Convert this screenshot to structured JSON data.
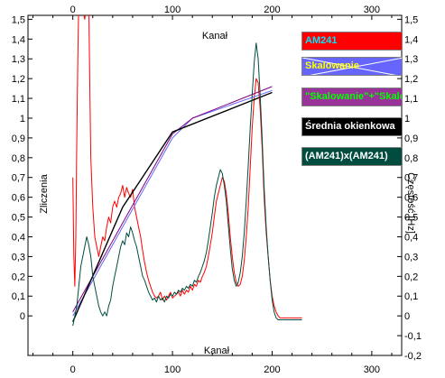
{
  "chart_data": {
    "type": "line",
    "x_top_ticks": [
      "0",
      "100",
      "200",
      "300"
    ],
    "x_bottom_ticks": [
      "0",
      "100",
      "200",
      "300"
    ],
    "x_top_label": "Kanał",
    "x_bottom_label": "Kanał",
    "y_left_label": "Zliczenia",
    "y_right_label": "Częstość [Hz]",
    "y_left_ticks": [
      "1,5",
      "1,4",
      "1,3",
      "1,2",
      "1,1",
      "1",
      "0,9",
      "0,8",
      "0,7",
      "0,6",
      "0,5",
      "0,4",
      "0,3",
      "0,2",
      "0,1",
      "0"
    ],
    "y_right_ticks": [
      "1,5",
      "1,4",
      "1,3",
      "1,2",
      "1,1",
      "1",
      "0,9",
      "0,8",
      "0,7",
      "0,6",
      "0,5",
      "0,4",
      "0,3",
      "0,2",
      "0,1",
      "0",
      "-0,1",
      "-0,2"
    ],
    "xlim": [
      -45,
      330
    ],
    "ylim": [
      -0.2,
      1.52
    ],
    "grid": false,
    "series": [
      {
        "name": "AM241",
        "color": "#ff0000",
        "points": [
          [
            0,
            0.7
          ],
          [
            1,
            0.3
          ],
          [
            2,
            0.15
          ],
          [
            3,
            0.4
          ],
          [
            4,
            0.9
          ],
          [
            5,
            1.3
          ],
          [
            6,
            1.6
          ],
          [
            8,
            1.6
          ],
          [
            10,
            1.55
          ],
          [
            12,
            1.5
          ],
          [
            14,
            1.6
          ],
          [
            16,
            1.6
          ],
          [
            17,
            1.2
          ],
          [
            18,
            0.8
          ],
          [
            20,
            0.55
          ],
          [
            22,
            0.4
          ],
          [
            24,
            0.35
          ],
          [
            26,
            0.3
          ],
          [
            28,
            0.35
          ],
          [
            30,
            0.4
          ],
          [
            32,
            0.38
          ],
          [
            34,
            0.45
          ],
          [
            36,
            0.5
          ],
          [
            38,
            0.47
          ],
          [
            40,
            0.55
          ],
          [
            42,
            0.58
          ],
          [
            44,
            0.55
          ],
          [
            46,
            0.6
          ],
          [
            48,
            0.62
          ],
          [
            50,
            0.66
          ],
          [
            52,
            0.6
          ],
          [
            54,
            0.65
          ],
          [
            56,
            0.62
          ],
          [
            58,
            0.6
          ],
          [
            60,
            0.64
          ],
          [
            62,
            0.55
          ],
          [
            64,
            0.5
          ],
          [
            66,
            0.45
          ],
          [
            68,
            0.4
          ],
          [
            70,
            0.33
          ],
          [
            72,
            0.27
          ],
          [
            74,
            0.22
          ],
          [
            76,
            0.18
          ],
          [
            78,
            0.15
          ],
          [
            80,
            0.12
          ],
          [
            82,
            0.1
          ],
          [
            84,
            0.09
          ],
          [
            86,
            0.1
          ],
          [
            88,
            0.12
          ],
          [
            90,
            0.08
          ],
          [
            92,
            0.1
          ],
          [
            94,
            0.08
          ],
          [
            96,
            0.1
          ],
          [
            98,
            0.12
          ],
          [
            100,
            0.09
          ],
          [
            102,
            0.1
          ],
          [
            104,
            0.11
          ],
          [
            106,
            0.12
          ],
          [
            108,
            0.1
          ],
          [
            110,
            0.13
          ],
          [
            112,
            0.11
          ],
          [
            114,
            0.13
          ],
          [
            116,
            0.12
          ],
          [
            118,
            0.15
          ],
          [
            120,
            0.13
          ],
          [
            122,
            0.16
          ],
          [
            124,
            0.15
          ],
          [
            126,
            0.18
          ],
          [
            128,
            0.17
          ],
          [
            130,
            0.2
          ],
          [
            132,
            0.22
          ],
          [
            134,
            0.25
          ],
          [
            136,
            0.3
          ],
          [
            138,
            0.36
          ],
          [
            140,
            0.42
          ],
          [
            142,
            0.5
          ],
          [
            144,
            0.58
          ],
          [
            146,
            0.62
          ],
          [
            148,
            0.66
          ],
          [
            150,
            0.7
          ],
          [
            152,
            0.68
          ],
          [
            154,
            0.62
          ],
          [
            156,
            0.52
          ],
          [
            158,
            0.4
          ],
          [
            160,
            0.3
          ],
          [
            162,
            0.22
          ],
          [
            164,
            0.17
          ],
          [
            166,
            0.15
          ],
          [
            168,
            0.16
          ],
          [
            170,
            0.2
          ],
          [
            172,
            0.28
          ],
          [
            174,
            0.4
          ],
          [
            176,
            0.55
          ],
          [
            178,
            0.75
          ],
          [
            180,
            0.95
          ],
          [
            182,
            1.1
          ],
          [
            184,
            1.2
          ],
          [
            186,
            1.18
          ],
          [
            188,
            1.05
          ],
          [
            190,
            0.85
          ],
          [
            192,
            0.6
          ],
          [
            194,
            0.42
          ],
          [
            196,
            0.3
          ],
          [
            198,
            0.18
          ],
          [
            200,
            0.1
          ],
          [
            202,
            0.05
          ],
          [
            204,
            0.02
          ],
          [
            206,
            0.0
          ],
          [
            208,
            -0.01
          ],
          [
            212,
            -0.01
          ],
          [
            230,
            -0.01
          ]
        ]
      },
      {
        "name": "Skalowanie",
        "color": "#6666ff",
        "points": [
          [
            0,
            0.0
          ],
          [
            100,
            0.9
          ],
          [
            120,
            1.0
          ],
          [
            200,
            1.14
          ]
        ]
      },
      {
        "name": "\"Skalowanie\"+\"Skalowanie\"",
        "color": "#800080",
        "points": [
          [
            0,
            0.02
          ],
          [
            100,
            0.92
          ],
          [
            120,
            1.0
          ],
          [
            200,
            1.16
          ]
        ]
      },
      {
        "name": "Średnia okienkowa",
        "color": "#000000",
        "points": [
          [
            0,
            -0.03
          ],
          [
            50,
            0.55
          ],
          [
            100,
            0.93
          ],
          [
            200,
            1.13
          ]
        ]
      },
      {
        "name": "(AM241)x(AM241)",
        "color": "#004d40",
        "points": [
          [
            0,
            -0.05
          ],
          [
            2,
            0.0
          ],
          [
            4,
            0.05
          ],
          [
            6,
            0.15
          ],
          [
            8,
            0.25
          ],
          [
            10,
            0.3
          ],
          [
            12,
            0.35
          ],
          [
            14,
            0.4
          ],
          [
            16,
            0.36
          ],
          [
            18,
            0.3
          ],
          [
            20,
            0.2
          ],
          [
            22,
            0.15
          ],
          [
            24,
            0.1
          ],
          [
            26,
            0.05
          ],
          [
            28,
            0.02
          ],
          [
            30,
            0.0
          ],
          [
            32,
            0.02
          ],
          [
            34,
            0.0
          ],
          [
            36,
            0.05
          ],
          [
            38,
            0.08
          ],
          [
            40,
            0.15
          ],
          [
            42,
            0.2
          ],
          [
            44,
            0.25
          ],
          [
            46,
            0.3
          ],
          [
            48,
            0.35
          ],
          [
            50,
            0.38
          ],
          [
            52,
            0.36
          ],
          [
            54,
            0.42
          ],
          [
            56,
            0.4
          ],
          [
            58,
            0.45
          ],
          [
            60,
            0.42
          ],
          [
            62,
            0.38
          ],
          [
            64,
            0.35
          ],
          [
            66,
            0.3
          ],
          [
            68,
            0.25
          ],
          [
            70,
            0.2
          ],
          [
            72,
            0.18
          ],
          [
            74,
            0.15
          ],
          [
            76,
            0.12
          ],
          [
            78,
            0.1
          ],
          [
            80,
            0.08
          ],
          [
            82,
            0.09
          ],
          [
            84,
            0.07
          ],
          [
            86,
            0.1
          ],
          [
            88,
            0.08
          ],
          [
            90,
            0.09
          ],
          [
            92,
            0.07
          ],
          [
            94,
            0.1
          ],
          [
            96,
            0.09
          ],
          [
            98,
            0.11
          ],
          [
            100,
            0.1
          ],
          [
            102,
            0.12
          ],
          [
            104,
            0.11
          ],
          [
            106,
            0.13
          ],
          [
            108,
            0.12
          ],
          [
            110,
            0.14
          ],
          [
            112,
            0.13
          ],
          [
            114,
            0.15
          ],
          [
            116,
            0.14
          ],
          [
            118,
            0.16
          ],
          [
            120,
            0.15
          ],
          [
            122,
            0.18
          ],
          [
            124,
            0.17
          ],
          [
            126,
            0.2
          ],
          [
            128,
            0.22
          ],
          [
            130,
            0.25
          ],
          [
            132,
            0.28
          ],
          [
            134,
            0.32
          ],
          [
            136,
            0.38
          ],
          [
            138,
            0.45
          ],
          [
            140,
            0.52
          ],
          [
            142,
            0.6
          ],
          [
            144,
            0.66
          ],
          [
            146,
            0.7
          ],
          [
            148,
            0.74
          ],
          [
            150,
            0.72
          ],
          [
            152,
            0.66
          ],
          [
            154,
            0.58
          ],
          [
            156,
            0.46
          ],
          [
            158,
            0.34
          ],
          [
            160,
            0.24
          ],
          [
            162,
            0.18
          ],
          [
            164,
            0.15
          ],
          [
            166,
            0.17
          ],
          [
            168,
            0.22
          ],
          [
            170,
            0.3
          ],
          [
            172,
            0.42
          ],
          [
            174,
            0.58
          ],
          [
            176,
            0.76
          ],
          [
            178,
            0.95
          ],
          [
            180,
            1.12
          ],
          [
            182,
            1.28
          ],
          [
            184,
            1.38
          ],
          [
            186,
            1.3
          ],
          [
            188,
            1.12
          ],
          [
            190,
            0.9
          ],
          [
            192,
            0.65
          ],
          [
            194,
            0.45
          ],
          [
            196,
            0.3
          ],
          [
            198,
            0.18
          ],
          [
            200,
            0.08
          ],
          [
            202,
            0.02
          ],
          [
            204,
            -0.01
          ],
          [
            206,
            -0.02
          ],
          [
            210,
            -0.02
          ],
          [
            230,
            -0.02
          ]
        ]
      }
    ],
    "legend_placement": "top-right"
  },
  "legend": [
    {
      "label": "AM241",
      "text_color": "#00e5ff",
      "bg": "#ff0000",
      "crossed": false
    },
    {
      "label": "Skalowanie",
      "text_color": "#ffff00",
      "bg": "#6666ff",
      "crossed": true
    },
    {
      "label": "\"Skalowanie\"+\"Skalowanie\"",
      "text_color": "#00ff00",
      "bg": "#993399",
      "crossed": false
    },
    {
      "label": "Średnia okienkowa",
      "text_color": "#ffffff",
      "bg": "#000000",
      "crossed": false
    },
    {
      "label": "(AM241)x(AM241)",
      "text_color": "#ffffff",
      "bg": "#004d40",
      "crossed": false
    }
  ]
}
